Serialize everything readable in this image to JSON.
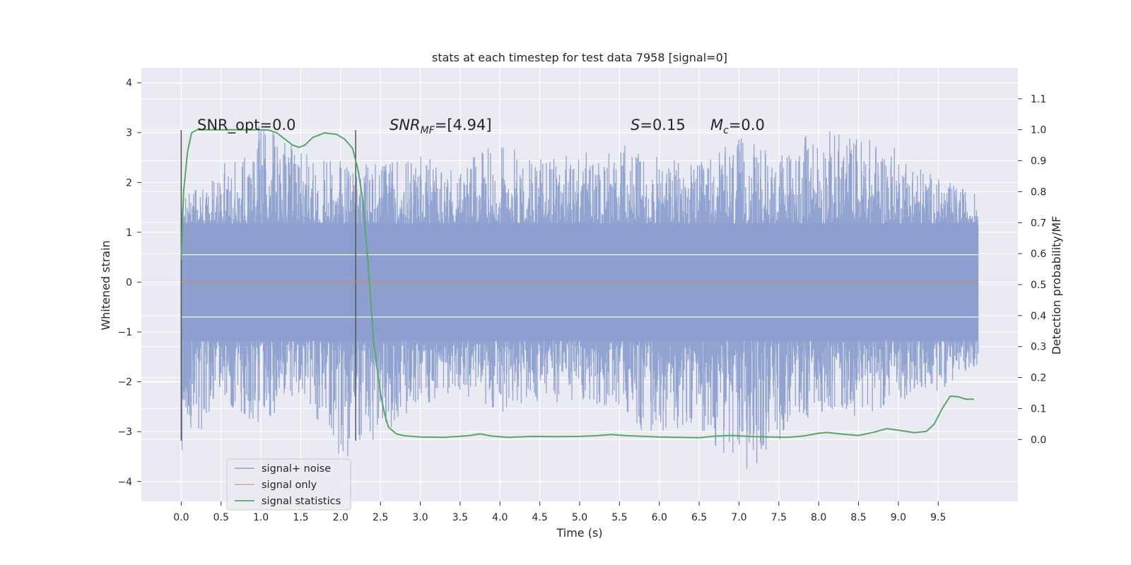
{
  "chart_data": {
    "type": "line",
    "title": "stats at each timestep for test data 7958 [signal=0]",
    "xlabel": "Time (s)",
    "ylabel": "Whitened strain",
    "ylabel_right": "Detection probability/MF",
    "xlim": [
      -0.5,
      10.5
    ],
    "ylim": [
      -4.4,
      4.3
    ],
    "ylim_right": [
      -0.2,
      1.2
    ],
    "x_ticks": [
      0.0,
      0.5,
      1.0,
      1.5,
      2.0,
      2.5,
      3.0,
      3.5,
      4.0,
      4.5,
      5.0,
      5.5,
      6.0,
      6.5,
      7.0,
      7.5,
      8.0,
      8.5,
      9.0,
      9.5
    ],
    "x_tick_labels": [
      "0.0",
      "0.5",
      "1.0",
      "1.5",
      "2.0",
      "2.5",
      "3.0",
      "3.5",
      "4.0",
      "4.5",
      "5.0",
      "5.5",
      "6.0",
      "6.5",
      "7.0",
      "7.5",
      "8.0",
      "8.5",
      "9.0",
      "9.5"
    ],
    "y_ticks": [
      4,
      3,
      2,
      1,
      0,
      -1,
      -2,
      -3,
      -4
    ],
    "y_tick_labels": [
      "4",
      "3",
      "2",
      "1",
      "0",
      "−1",
      "−2",
      "−3",
      "−4"
    ],
    "y_right_ticks": [
      1.1,
      1.0,
      0.9,
      0.8,
      0.7,
      0.6,
      0.5,
      0.4,
      0.3,
      0.2,
      0.1,
      0.0
    ],
    "y_right_tick_labels": [
      "1.1",
      "1.0",
      "0.9",
      "0.8",
      "0.7",
      "0.6",
      "0.5",
      "0.4",
      "0.3",
      "0.2",
      "0.1",
      "0.0"
    ],
    "grid": true,
    "legend_position": "lower-left",
    "annotations": {
      "snr_opt": "SNR_opt=0.0",
      "snr_mf_main": "SNR",
      "snr_mf_sub": "MF",
      "snr_mf_rest": "=[4.94]",
      "s_sym": "S",
      "s_rest": "=0.15",
      "mc_main": "M",
      "mc_sub": "c",
      "mc_rest": "=0.0"
    },
    "vertical_markers": [
      0.0,
      2.19
    ],
    "series": [
      {
        "name": "signal+ noise",
        "color": "#8c9fce",
        "axis": "left",
        "style": "noise",
        "x_range": [
          0.0,
          10.0
        ],
        "envelope": [
          [
            0.0,
            1.7,
            -3.6
          ],
          [
            0.5,
            2.3,
            -2.4
          ],
          [
            1.0,
            3.3,
            -2.9
          ],
          [
            1.5,
            2.6,
            -2.2
          ],
          [
            2.0,
            2.5,
            -3.6
          ],
          [
            2.5,
            2.4,
            -3.2
          ],
          [
            3.0,
            2.6,
            -2.5
          ],
          [
            3.5,
            2.3,
            -2.2
          ],
          [
            4.0,
            2.9,
            -2.7
          ],
          [
            4.5,
            2.5,
            -2.4
          ],
          [
            5.0,
            2.6,
            -2.5
          ],
          [
            5.5,
            2.8,
            -2.6
          ],
          [
            6.0,
            2.5,
            -3.3
          ],
          [
            6.5,
            2.4,
            -2.9
          ],
          [
            7.0,
            2.9,
            -4.0
          ],
          [
            7.5,
            2.6,
            -3.2
          ],
          [
            8.0,
            3.1,
            -2.6
          ],
          [
            8.5,
            3.0,
            -2.7
          ],
          [
            9.0,
            2.7,
            -2.4
          ],
          [
            9.5,
            2.1,
            -2.2
          ],
          [
            9.95,
            1.8,
            -1.7
          ]
        ]
      },
      {
        "name": "signal only",
        "color": "#dd8452",
        "axis": "left",
        "x": [
          0.0,
          10.0
        ],
        "y": [
          0.0,
          0.0
        ]
      },
      {
        "name": "signal statistics",
        "color": "#55a868",
        "axis": "right",
        "x": [
          0.0,
          0.03,
          0.08,
          0.13,
          0.2,
          0.3,
          0.5,
          0.8,
          1.0,
          1.1,
          1.2,
          1.3,
          1.4,
          1.48,
          1.55,
          1.65,
          1.8,
          1.95,
          2.05,
          2.15,
          2.22,
          2.28,
          2.35,
          2.42,
          2.5,
          2.55,
          2.6,
          2.7,
          2.8,
          3.0,
          3.3,
          3.6,
          3.75,
          3.9,
          4.1,
          4.4,
          4.7,
          5.0,
          5.2,
          5.4,
          5.6,
          6.0,
          6.5,
          6.7,
          6.9,
          7.2,
          7.6,
          7.8,
          8.0,
          8.1,
          8.3,
          8.5,
          8.7,
          8.85,
          9.0,
          9.2,
          9.35,
          9.45,
          9.55,
          9.65,
          9.75,
          9.85,
          9.95
        ],
        "y": [
          0.58,
          0.8,
          0.93,
          0.99,
          1.0,
          1.0,
          1.0,
          1.0,
          1.0,
          0.999,
          0.99,
          0.97,
          0.95,
          0.943,
          0.95,
          0.975,
          0.99,
          0.985,
          0.97,
          0.94,
          0.87,
          0.77,
          0.55,
          0.3,
          0.15,
          0.085,
          0.04,
          0.018,
          0.012,
          0.008,
          0.007,
          0.012,
          0.018,
          0.011,
          0.007,
          0.01,
          0.009,
          0.01,
          0.012,
          0.016,
          0.012,
          0.008,
          0.006,
          0.011,
          0.013,
          0.009,
          0.007,
          0.011,
          0.02,
          0.023,
          0.017,
          0.013,
          0.024,
          0.035,
          0.03,
          0.022,
          0.026,
          0.05,
          0.1,
          0.14,
          0.138,
          0.13,
          0.13
        ]
      }
    ]
  }
}
